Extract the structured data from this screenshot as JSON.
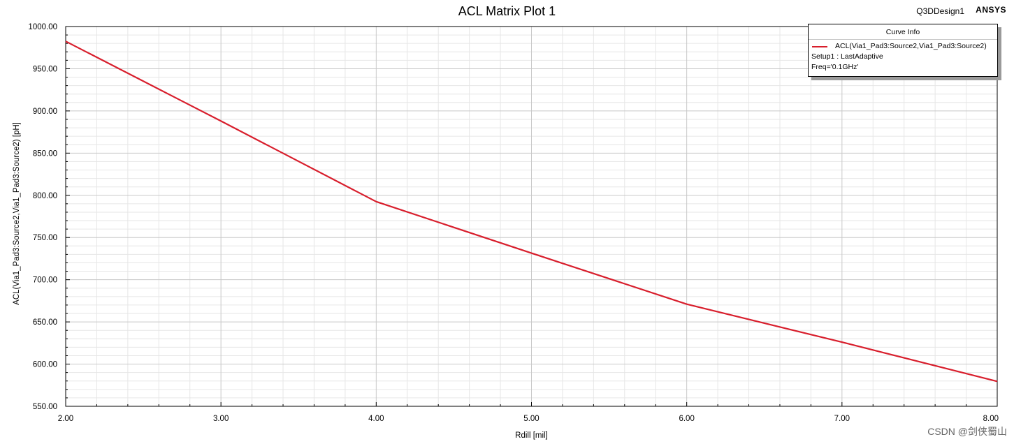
{
  "window": {
    "design_name": "Q3DDesign1",
    "brand": "ANSYS"
  },
  "legend": {
    "title": "Curve Info",
    "series_label": "ACL(Via1_Pad3:Source2,Via1_Pad3:Source2)",
    "lines": [
      "Setup1 : LastAdaptive",
      "Freq='0.1GHz'"
    ]
  },
  "watermark": "CSDN @剑侠蜀山",
  "colors": {
    "series": "#d81e2c",
    "grid_major": "#c8c8c8",
    "grid_minor": "#e6e6e6"
  },
  "chart_data": {
    "type": "line",
    "title": "ACL Matrix Plot 1",
    "xlabel": "Rdill [mil]",
    "ylabel": "ACL(Via1_Pad3:Source2,Via1_Pad3:Source2) [pH]",
    "xlim": [
      2.0,
      8.0
    ],
    "ylim": [
      550.0,
      1000.0
    ],
    "xticks": [
      "2.00",
      "3.00",
      "4.00",
      "5.00",
      "6.00",
      "7.00",
      "8.00"
    ],
    "yticks": [
      "550.00",
      "600.00",
      "650.00",
      "700.00",
      "750.00",
      "800.00",
      "850.00",
      "900.00",
      "950.00",
      "1000.00"
    ],
    "grid": true,
    "legend_position": "top-right",
    "series": [
      {
        "name": "ACL(Via1_Pad3:Source2,Via1_Pad3:Source2)",
        "x": [
          2.0,
          3.0,
          4.0,
          5.0,
          6.0,
          7.0,
          8.0
        ],
        "y": [
          982.5,
          888.0,
          792.5,
          731.5,
          671.0,
          626.0,
          579.5
        ]
      }
    ]
  }
}
